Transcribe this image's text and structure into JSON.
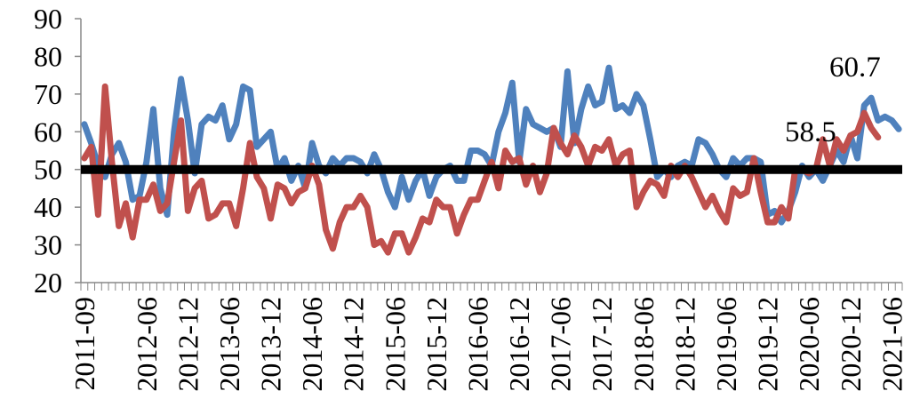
{
  "chart_data": {
    "type": "line",
    "title": "",
    "xlabel": "",
    "ylabel": "",
    "ylim": [
      20,
      90
    ],
    "yticks": [
      20,
      30,
      40,
      50,
      60,
      70,
      80,
      90
    ],
    "grid": false,
    "legend": "none",
    "x_start": "2011-09",
    "x_tick_labels": [
      "2011-09",
      "2012-06",
      "2012-12",
      "2013-06",
      "2013-12",
      "2014-06",
      "2014-12",
      "2015-06",
      "2015-12",
      "2016-06",
      "2016-12",
      "2017-06",
      "2017-12",
      "2018-06",
      "2018-12",
      "2019-06",
      "2019-12",
      "2020-06",
      "2020-12",
      "2021-06"
    ],
    "reference_line": {
      "y": 50,
      "color": "#000000"
    },
    "series": [
      {
        "color": "#4f81bd",
        "values": [
          62,
          57,
          51,
          48,
          54,
          57,
          52,
          42,
          43,
          52,
          66,
          45,
          38,
          60,
          74,
          63,
          49,
          62,
          64,
          63,
          67,
          58,
          62,
          72,
          71,
          56,
          58,
          60,
          50,
          53,
          47,
          51,
          45,
          57,
          51,
          49,
          53,
          51,
          53,
          53,
          52,
          49,
          54,
          50,
          44,
          40,
          48,
          42,
          47,
          50,
          43,
          48,
          50,
          51,
          47,
          47,
          55,
          55,
          54,
          51,
          60,
          65,
          73,
          52,
          66,
          62,
          61,
          60,
          61,
          56,
          76,
          57,
          66,
          72,
          67,
          68,
          77,
          66,
          67,
          65,
          70,
          67,
          58,
          48,
          50,
          48,
          51,
          52,
          51,
          58,
          57,
          54,
          50,
          48,
          53,
          51,
          53,
          53,
          52,
          38,
          39,
          36,
          39,
          44,
          51,
          48,
          50,
          47,
          51,
          55,
          52,
          59,
          53,
          67,
          69,
          63,
          64,
          63,
          60.7
        ],
        "final_label": "60.7"
      },
      {
        "color": "#c0504d",
        "values": [
          53,
          56,
          38,
          72,
          52,
          35,
          41,
          32,
          42,
          42,
          46,
          39,
          41,
          52,
          63,
          39,
          45,
          47,
          37,
          38,
          41,
          41,
          35,
          45,
          57,
          48,
          45,
          37,
          46,
          45,
          41,
          44,
          45,
          51,
          46,
          34,
          29,
          36,
          40,
          40,
          43,
          40,
          30,
          31,
          28,
          33,
          33,
          28,
          32,
          37,
          36,
          42,
          40,
          40,
          33,
          38,
          42,
          42,
          47,
          52,
          45,
          55,
          52,
          53,
          46,
          51,
          44,
          49,
          61,
          57,
          54,
          59,
          56,
          51,
          56,
          55,
          58,
          51,
          54,
          55,
          40,
          44,
          47,
          46,
          43,
          51,
          48,
          51,
          48,
          44,
          40,
          43,
          39,
          36,
          45,
          43,
          44,
          53,
          44,
          36,
          36,
          40,
          37,
          50,
          50,
          49,
          50,
          58,
          51,
          58,
          55,
          59,
          60,
          65,
          61,
          58.5
        ],
        "final_label": "58.5"
      }
    ]
  }
}
